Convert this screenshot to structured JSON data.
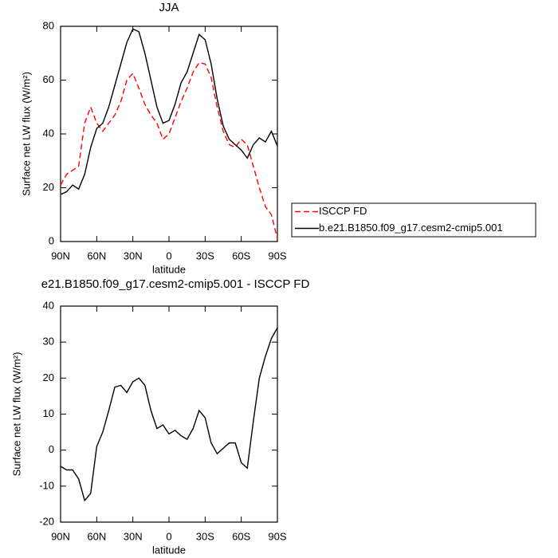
{
  "chart_data": [
    {
      "type": "line",
      "title": "JJA",
      "xlabel": "latitude",
      "ylabel": "Surface net LW flux (W/m²)",
      "x": [
        90,
        85,
        80,
        75,
        70,
        65,
        60,
        55,
        50,
        45,
        40,
        35,
        30,
        25,
        20,
        15,
        10,
        5,
        0,
        -5,
        -10,
        -15,
        -20,
        -25,
        -30,
        -35,
        -40,
        -45,
        -50,
        -55,
        -60,
        -65,
        -70,
        -75,
        -80,
        -85,
        -90
      ],
      "xlim": [
        90,
        -90
      ],
      "xticks": [
        {
          "value": 90,
          "label": "90N"
        },
        {
          "value": 60,
          "label": "60N"
        },
        {
          "value": 30,
          "label": "30N"
        },
        0,
        {
          "value": -30,
          "label": "30S"
        },
        {
          "value": -60,
          "label": "60S"
        },
        {
          "value": -90,
          "label": "90S"
        }
      ],
      "ylim": [
        0,
        80
      ],
      "yticks": [
        0,
        20,
        40,
        60,
        80
      ],
      "legend": "right",
      "series": [
        {
          "name": "ISCCP FD",
          "color": "#ff0000",
          "linestyle": "dashed",
          "values": [
            21,
            25,
            26.5,
            28,
            44,
            50,
            44,
            41,
            44,
            47,
            52,
            60,
            62.5,
            57,
            51,
            47,
            44,
            38,
            40,
            46,
            52,
            57,
            63,
            66.5,
            66,
            61,
            50,
            41,
            36,
            35,
            38,
            36,
            28,
            20,
            13,
            10,
            1
          ]
        },
        {
          "name": "b.e21.B1850.f09_g17.cesm2-cmip5.001",
          "color": "#000000",
          "linestyle": "solid",
          "values": [
            17.5,
            18.5,
            21,
            19.5,
            25,
            35,
            42,
            44,
            50,
            58,
            66,
            74,
            79,
            78,
            70,
            60,
            50,
            44,
            45,
            51,
            59,
            63,
            70,
            77,
            75,
            66,
            53,
            43,
            38,
            36,
            34,
            31,
            36,
            38.5,
            37,
            41,
            35.5
          ]
        }
      ]
    },
    {
      "type": "line",
      "title": "e21.B1850.f09_g17.cesm2-cmip5.001 - ISCCP FD",
      "xlabel": "latitude",
      "ylabel": "Surface net LW flux (W/m²)",
      "x": [
        90,
        85,
        80,
        75,
        70,
        65,
        60,
        55,
        50,
        45,
        40,
        35,
        30,
        25,
        20,
        15,
        10,
        5,
        0,
        -5,
        -10,
        -15,
        -20,
        -25,
        -30,
        -35,
        -40,
        -45,
        -50,
        -55,
        -60,
        -65,
        -70,
        -75,
        -80,
        -85,
        -90
      ],
      "xlim": [
        90,
        -90
      ],
      "xticks": [
        {
          "value": 90,
          "label": "90N"
        },
        {
          "value": 60,
          "label": "60N"
        },
        {
          "value": 30,
          "label": "30N"
        },
        0,
        {
          "value": -30,
          "label": "30S"
        },
        {
          "value": -60,
          "label": "60S"
        },
        {
          "value": -90,
          "label": "90S"
        }
      ],
      "ylim": [
        -20,
        40
      ],
      "yticks": [
        -20,
        -10,
        0,
        10,
        20,
        30,
        40
      ],
      "series": [
        {
          "color": "#000000",
          "linestyle": "solid",
          "values": [
            -4.5,
            -5.5,
            -5.5,
            -8,
            -14,
            -12,
            1,
            5,
            11,
            17.5,
            18,
            16,
            19,
            20,
            18,
            11,
            6,
            7,
            4.5,
            5.5,
            4,
            3,
            6,
            11,
            9,
            2,
            -1,
            0.5,
            2,
            2,
            -3.5,
            -5,
            8,
            20,
            26,
            31,
            34
          ]
        }
      ]
    }
  ]
}
